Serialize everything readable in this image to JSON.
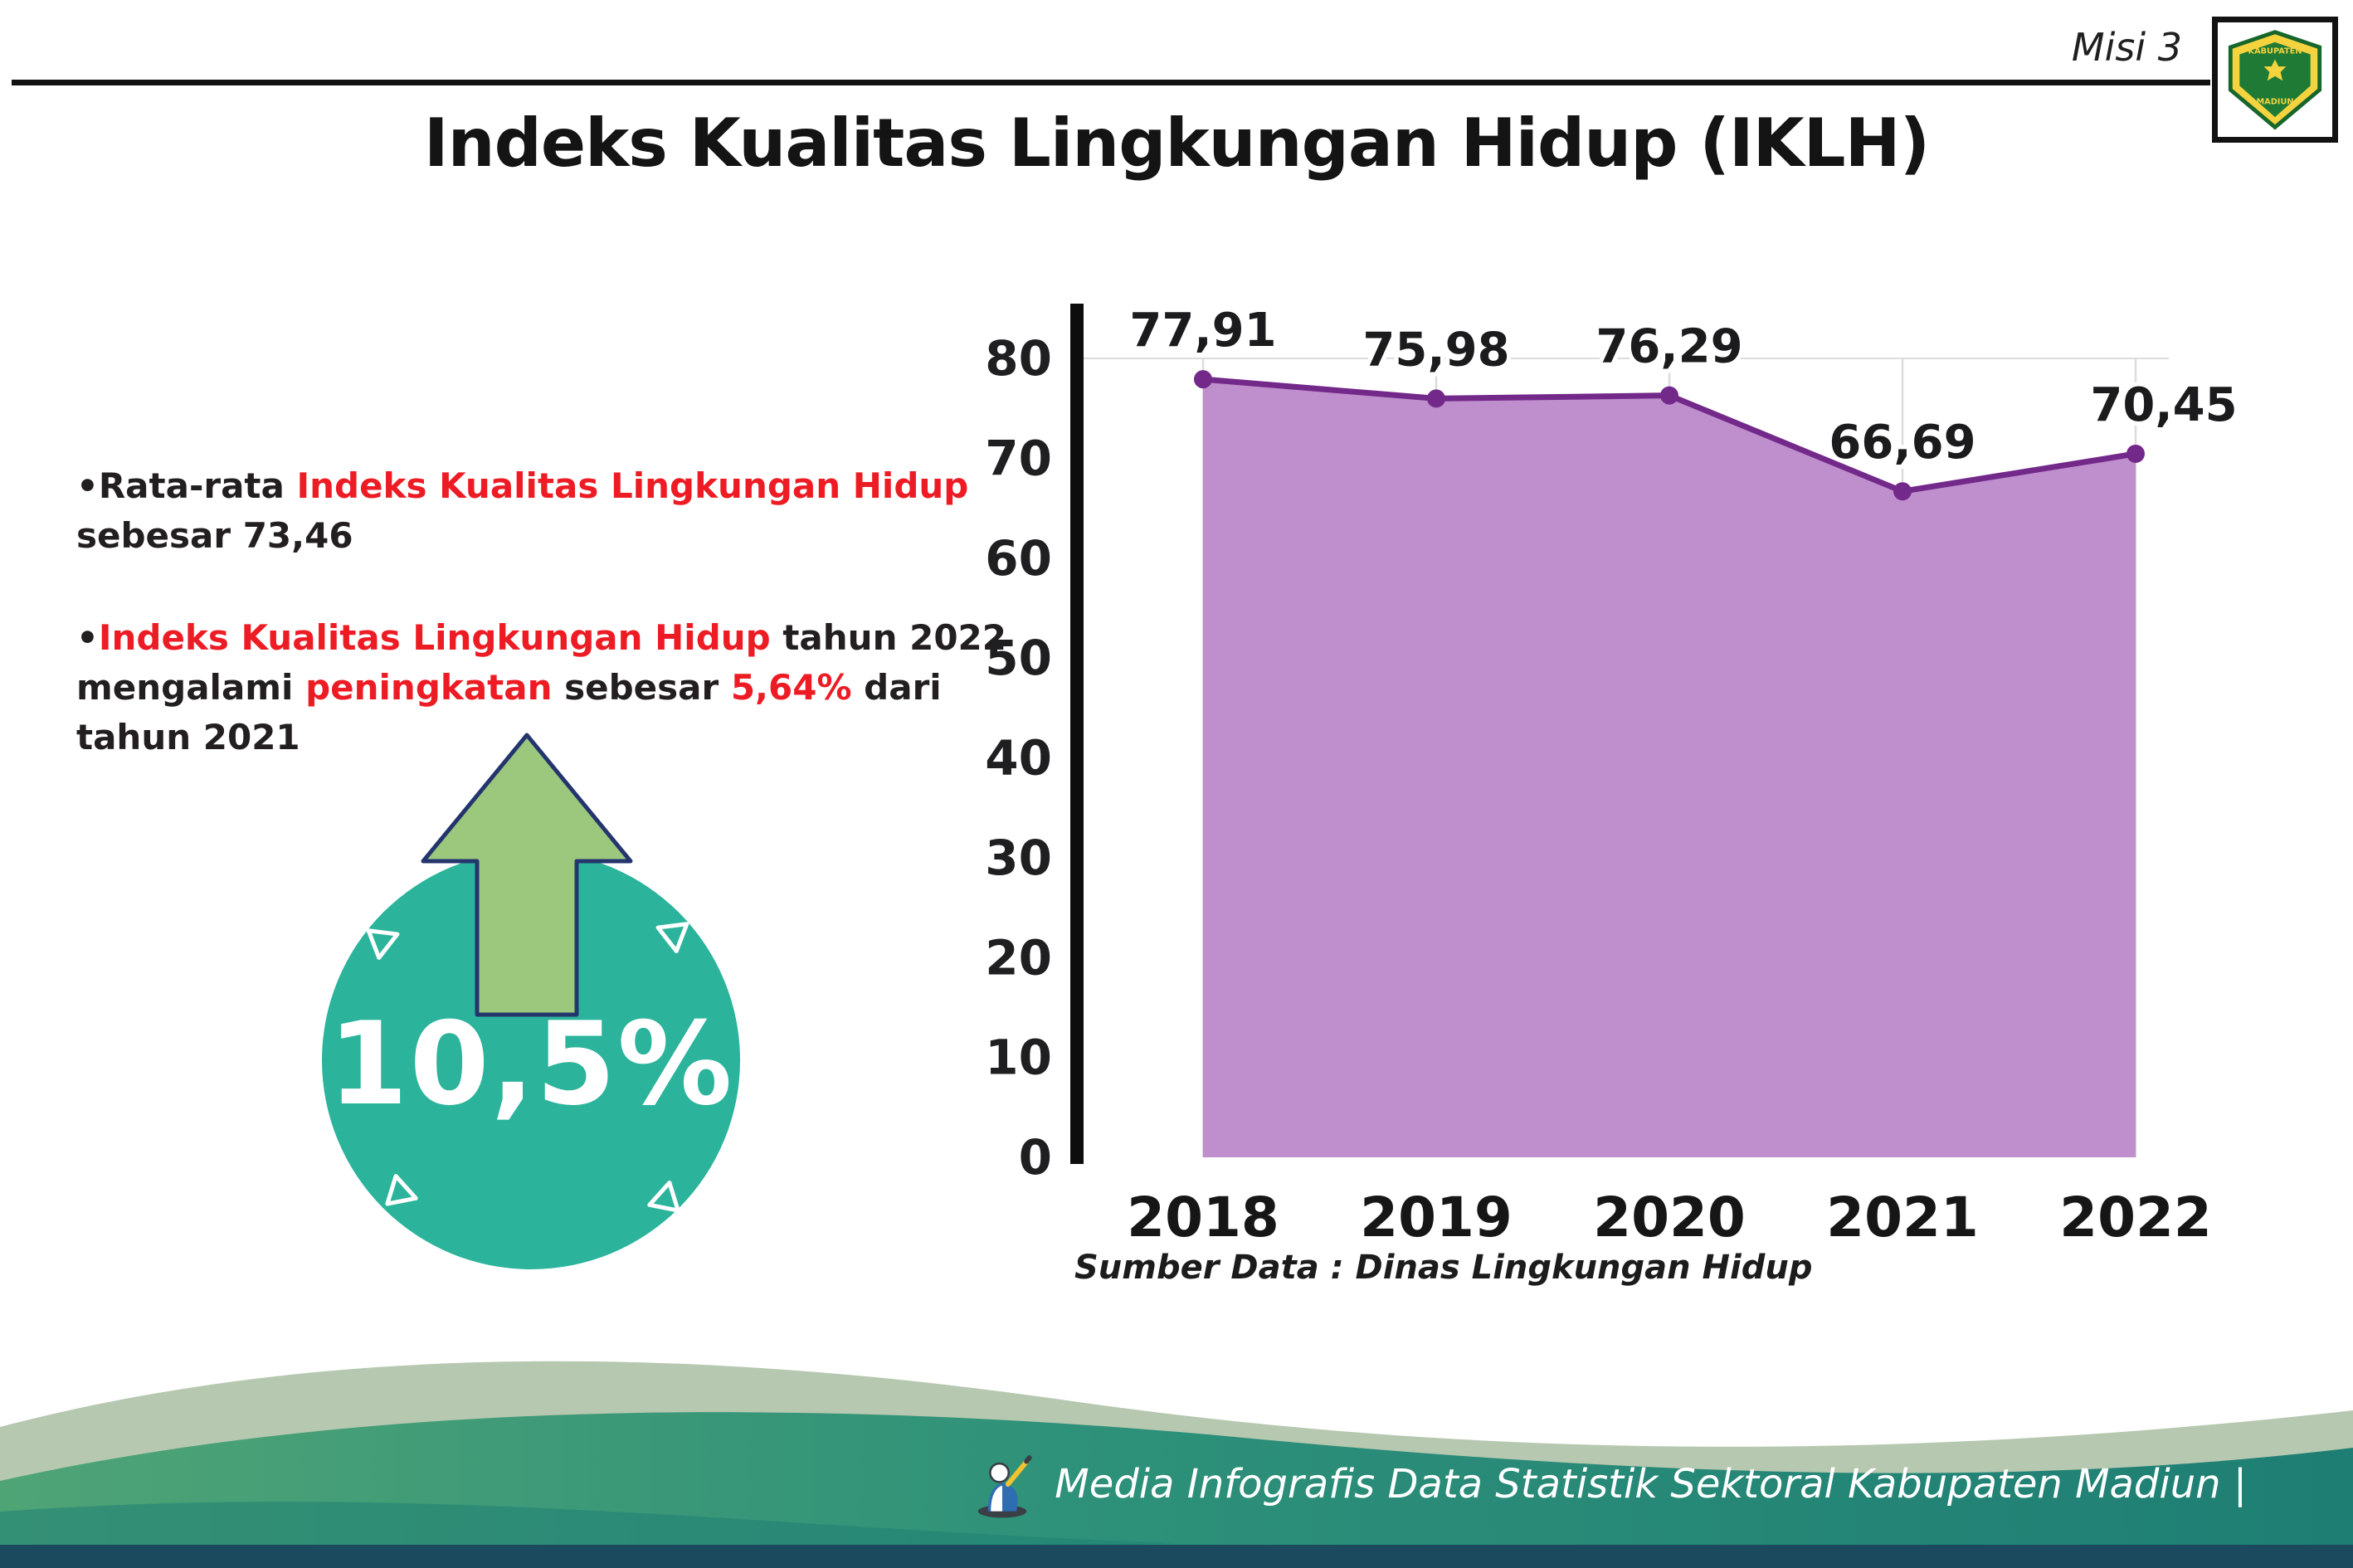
{
  "colors": {
    "accent-red": "#ED1C24",
    "text-dark": "#231F20",
    "badge-teal": "#2BB49B",
    "arrow-green": "#9CC87E",
    "arrow-outline": "#24356E",
    "footer-light": "#B6C8B0",
    "footer-green": "#4FA476",
    "footer-teal": "#1F7F74",
    "footer-strip": "#1B4A5F"
  },
  "header": {
    "misi_label": "Misi 3",
    "logo": {
      "top_text": "KABUPATEN",
      "bottom_text": "MADIUN"
    }
  },
  "title": "Indeks Kualitas Lingkungan Hidup (IKLH)",
  "bullets": [
    {
      "segments": [
        {
          "text": "•Rata-rata ",
          "red": false
        },
        {
          "text": "Indeks Kualitas Lingkungan Hidup",
          "red": true
        },
        {
          "text": " sebesar 73,46",
          "red": false
        }
      ]
    },
    {
      "segments": [
        {
          "text": "•",
          "red": false
        },
        {
          "text": "Indeks Kualitas Lingkungan Hidup",
          "red": true
        },
        {
          "text": " tahun 2022 mengalami ",
          "red": false
        },
        {
          "text": "peningkatan",
          "red": true
        },
        {
          "text": " sebesar ",
          "red": false
        },
        {
          "text": "5,64%",
          "red": true
        },
        {
          "text": " dari tahun 2021",
          "red": false
        }
      ]
    }
  ],
  "badge": {
    "value": "10,5%"
  },
  "chart_data": {
    "type": "area",
    "title": "Indeks Kualitas Lingkungan Hidup (IKLH)",
    "categories": [
      "2018",
      "2019",
      "2020",
      "2021",
      "2022"
    ],
    "values": [
      77.91,
      75.98,
      76.29,
      66.69,
      70.45
    ],
    "point_labels": [
      "77,91",
      "75,98",
      "76,29",
      "66,69",
      "70,45"
    ],
    "xlabel": "",
    "ylabel": "",
    "ylim": [
      0,
      80
    ],
    "yticks": [
      0,
      10,
      20,
      30,
      40,
      50,
      60,
      70,
      80
    ],
    "grid": "vertical",
    "legend": "none",
    "area_color": "#BE8ECD",
    "line_color": "#73298A"
  },
  "source_note": "Sumber Data : Dinas Lingkungan Hidup",
  "footer": {
    "caption": "Media Infografis Data Statistik Sektoral Kabupaten Madiun |"
  }
}
